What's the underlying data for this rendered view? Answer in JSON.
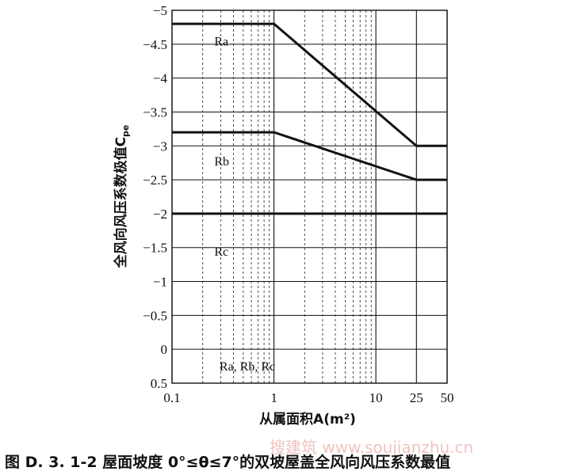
{
  "chart_data": {
    "type": "line",
    "x_scale": "log",
    "xlim": [
      0.1,
      50
    ],
    "ylim": [
      0.5,
      -5
    ],
    "y_inverted": true,
    "x_ticks": [
      {
        "value": 0.1,
        "label": "0.1"
      },
      {
        "value": 1,
        "label": "1"
      },
      {
        "value": 10,
        "label": "10"
      },
      {
        "value": 25,
        "label": "25"
      },
      {
        "value": 50,
        "label": "50"
      }
    ],
    "y_ticks": [
      {
        "value": -5,
        "label": "−5"
      },
      {
        "value": -4.5,
        "label": "−4.5"
      },
      {
        "value": -4,
        "label": "−4"
      },
      {
        "value": -3.5,
        "label": "−3.5"
      },
      {
        "value": -3,
        "label": "−3"
      },
      {
        "value": -2.5,
        "label": "−2.5"
      },
      {
        "value": -2,
        "label": "−2"
      },
      {
        "value": -1.5,
        "label": "−1.5"
      },
      {
        "value": -1,
        "label": "−1"
      },
      {
        "value": -0.5,
        "label": "−0.5"
      },
      {
        "value": 0,
        "label": "0"
      },
      {
        "value": 0.5,
        "label": "0.5"
      }
    ],
    "grid": true,
    "xlabel": "从属面积A(m²)",
    "ylabel": "全风向风压系数极值C",
    "ylabel_subscript": "pe",
    "series": [
      {
        "name": "Ra",
        "points": [
          [
            0.1,
            -4.8
          ],
          [
            1,
            -4.8
          ],
          [
            25,
            -3.0
          ],
          [
            50,
            -3.0
          ]
        ]
      },
      {
        "name": "Rb",
        "points": [
          [
            0.1,
            -3.2
          ],
          [
            1,
            -3.2
          ],
          [
            25,
            -2.5
          ],
          [
            50,
            -2.5
          ]
        ]
      },
      {
        "name": "Rc",
        "points": [
          [
            0.1,
            -2.0
          ],
          [
            50,
            -2.0
          ]
        ]
      }
    ],
    "annotations": {
      "bottom": "Ra, Rb, Rc"
    },
    "caption": "图 D. 3. 1-2   屋面坡度 0°≤θ≤7°的双坡屋盖全风向风压系数最值"
  },
  "watermark": "搜建筑 www.soujianzhu.cn"
}
